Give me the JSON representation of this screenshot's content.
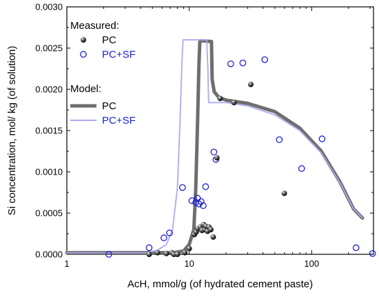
{
  "chart_data": {
    "type": "scatter",
    "xlabel": "AcH, mmol/g (of hydrated cement paste)",
    "ylabel": "Si concentration, mol/ kg (of solution)",
    "x_scale": "log",
    "xlim": [
      1,
      320
    ],
    "ylim": [
      0,
      0.003
    ],
    "x_ticks": [
      1,
      10,
      100
    ],
    "x_tick_labels": [
      "1",
      "10",
      "100"
    ],
    "y_ticks": [
      0,
      0.0005,
      0.001,
      0.0015,
      0.002,
      0.0025,
      0.003
    ],
    "y_tick_labels": [
      "0.0000",
      "0.0005",
      "0.0010",
      "0.0015",
      "0.0020",
      "0.0025",
      "0.0030"
    ],
    "grid": false,
    "legend": {
      "placement": "top-left",
      "measured_title": "Measured:",
      "model_title": "Model:",
      "pc_label": "PC",
      "pcsf_label": "PC+SF"
    },
    "colors": {
      "measured_pc": "#1a1a1a",
      "measured_pcsf": "#1f1fd6",
      "model_pc": "#6e6e6e",
      "model_pcsf": "#a9a9ee"
    },
    "measured": {
      "PC": [
        [
          4.7,
          0.0
        ],
        [
          5.5,
          2e-05
        ],
        [
          6.5,
          1e-05
        ],
        [
          7.2,
          2e-05
        ],
        [
          7.5,
          0.0
        ],
        [
          8.0,
          0.0
        ],
        [
          9.2,
          2e-05
        ],
        [
          10.0,
          7e-05
        ],
        [
          11.0,
          0.00024
        ],
        [
          11.4,
          0.00027
        ],
        [
          11.8,
          0.00031
        ],
        [
          12.3,
          0.00033
        ],
        [
          12.7,
          0.00029
        ],
        [
          13.1,
          0.00036
        ],
        [
          13.4,
          0.0003
        ],
        [
          13.7,
          0.00034
        ],
        [
          14.1,
          0.00028
        ],
        [
          14.5,
          0.00033
        ],
        [
          15.0,
          0.0003
        ],
        [
          15.7,
          0.00021
        ],
        [
          16.8,
          0.00117
        ],
        [
          17.9,
          0.00189
        ],
        [
          23.2,
          0.00184
        ],
        [
          31.8,
          0.00206
        ],
        [
          59.8,
          0.00074
        ]
      ],
      "PC+SF": [
        [
          2.2,
          0.0
        ],
        [
          4.7,
          8e-05
        ],
        [
          6.2,
          0.0002
        ],
        [
          6.9,
          0.00026
        ],
        [
          8.8,
          0.00081
        ],
        [
          10.5,
          0.00065
        ],
        [
          11.3,
          0.00063
        ],
        [
          11.7,
          0.00068
        ],
        [
          12.0,
          0.00061
        ],
        [
          12.5,
          0.00064
        ],
        [
          13.0,
          0.00059
        ],
        [
          13.6,
          0.00082
        ],
        [
          15.9,
          0.00124
        ],
        [
          16.5,
          0.00115
        ],
        [
          21.8,
          0.00231
        ],
        [
          27.4,
          0.00232
        ],
        [
          41.4,
          0.00236
        ],
        [
          54.5,
          0.00139
        ],
        [
          82.8,
          0.00104
        ],
        [
          121.6,
          0.0014
        ],
        [
          230.6,
          8e-05
        ],
        [
          314.6,
          1e-05
        ]
      ]
    },
    "model": {
      "PC": [
        [
          1,
          2e-05
        ],
        [
          7.5,
          2e-05
        ],
        [
          9.0,
          4e-05
        ],
        [
          10.0,
          0.00012
        ],
        [
          10.9,
          0.0003
        ],
        [
          11.3,
          0.0008
        ],
        [
          11.7,
          0.0016
        ],
        [
          12.0,
          0.0023
        ],
        [
          12.2,
          0.00258
        ],
        [
          12.5,
          0.00259
        ],
        [
          15.2,
          0.00258
        ],
        [
          15.4,
          0.00212
        ],
        [
          16.0,
          0.00197
        ],
        [
          17.5,
          0.0019
        ],
        [
          20,
          0.00187
        ],
        [
          30,
          0.00183
        ],
        [
          50,
          0.00173
        ],
        [
          80,
          0.00153
        ],
        [
          120,
          0.00125
        ],
        [
          170,
          0.00088
        ],
        [
          220,
          0.00055
        ],
        [
          260,
          0.00044
        ]
      ],
      "PC+SF": [
        [
          1,
          2e-05
        ],
        [
          4.5,
          2e-05
        ],
        [
          5.5,
          5e-05
        ],
        [
          6.5,
          0.00012
        ],
        [
          7.3,
          0.0003
        ],
        [
          8.0,
          0.0008
        ],
        [
          8.4,
          0.0016
        ],
        [
          8.7,
          0.0023
        ],
        [
          8.9,
          0.0026
        ],
        [
          13.9,
          0.0026
        ],
        [
          14.2,
          0.00224
        ],
        [
          14.4,
          0.00184
        ],
        [
          20,
          0.00184
        ],
        [
          30,
          0.0018
        ],
        [
          50,
          0.00169
        ],
        [
          80,
          0.0015
        ],
        [
          120,
          0.00123
        ],
        [
          170,
          0.00087
        ],
        [
          220,
          0.00055
        ],
        [
          260,
          0.00044
        ]
      ]
    }
  }
}
